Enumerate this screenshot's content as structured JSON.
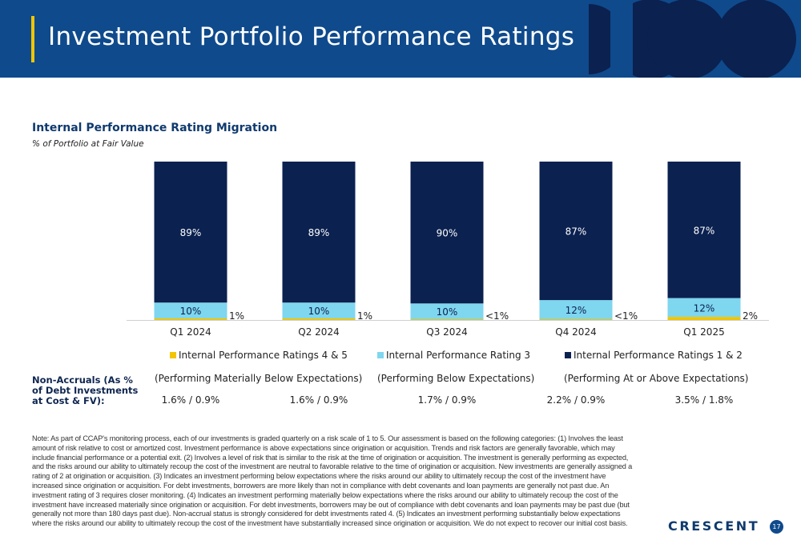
{
  "header": {
    "title": "Investment Portfolio Performance Ratings"
  },
  "chart_title": "Internal Performance Rating Migration",
  "chart_subtitle": "% of Portfolio at Fair Value",
  "chart_data": {
    "type": "bar",
    "stacked": true,
    "categories": [
      "Q1 2024",
      "Q2 2024",
      "Q3 2024",
      "Q4 2024",
      "Q1 2025"
    ],
    "series": [
      {
        "name": "Internal Performance Ratings 4 & 5",
        "color": "#f2c500",
        "values": [
          1,
          1,
          0.5,
          0.5,
          2
        ],
        "labels": [
          "1%",
          "1%",
          "<1%",
          "<1%",
          "2%"
        ]
      },
      {
        "name": "Internal Performance Rating 3",
        "color": "#7fd6ef",
        "values": [
          10,
          10,
          10,
          12,
          12
        ],
        "labels": [
          "10%",
          "10%",
          "10%",
          "12%",
          "12%"
        ]
      },
      {
        "name": "Internal Performance Ratings 1 & 2",
        "color": "#0b2150",
        "values": [
          89,
          89,
          90,
          87,
          87
        ],
        "labels": [
          "89%",
          "89%",
          "90%",
          "87%",
          "87%"
        ]
      }
    ],
    "ylim": [
      0,
      100
    ],
    "grid": false,
    "legend_position": "bottom"
  },
  "legend_descriptions": [
    "(Performing Materially Below Expectations)",
    "(Performing Below Expectations)",
    "(Performing At or Above Expectations)"
  ],
  "non_accruals": {
    "label": "Non-Accruals (As % of Debt Investments at Cost & FV):",
    "values": [
      "1.6% / 0.9%",
      "1.6% / 0.9%",
      "1.7% / 0.9%",
      "2.2% / 0.9%",
      "3.5% / 1.8%"
    ]
  },
  "note": "Note: As part of CCAP's monitoring process, each of our investments is graded quarterly on a risk scale of 1 to 5. Our assessment is based on the following categories: (1) Involves the least amount of risk relative to cost or amortized cost. Investment performance is above expectations since origination or acquisition. Trends and risk factors are generally favorable, which may include financial performance or a potential exit. (2) Involves a level of risk that is similar to the risk at the time of origination or acquisition. The investment is generally performing as expected, and the risks around our ability to ultimately recoup the cost of the investment are neutral to favorable relative to the time of origination or acquisition. New investments are generally assigned a rating of 2 at origination or acquisition. (3) Indicates an investment performing below expectations where the risks around our ability to ultimately recoup the cost of the investment have increased since origination or acquisition. For debt investments, borrowers are more likely than not in compliance with debt covenants and loan payments are generally not past due. An investment rating of 3 requires closer monitoring. (4) Indicates an investment performing materially below expectations where the risks around our ability to ultimately recoup the cost of the investment have increased materially since origination or acquisition. For debt investments, borrowers may be out of compliance with debt covenants and loan payments may be past due (but generally not more than 180 days past due). Non-accrual status is strongly considered for debt investments rated 4. (5) Indicates an investment performing substantially below expectations where the risks around our ability to ultimately recoup the cost of the investment have substantially increased since origination or acquisition. We do not expect to recover our initial cost basis.",
  "footer": {
    "logo": "CRESCENT",
    "page": "17"
  }
}
